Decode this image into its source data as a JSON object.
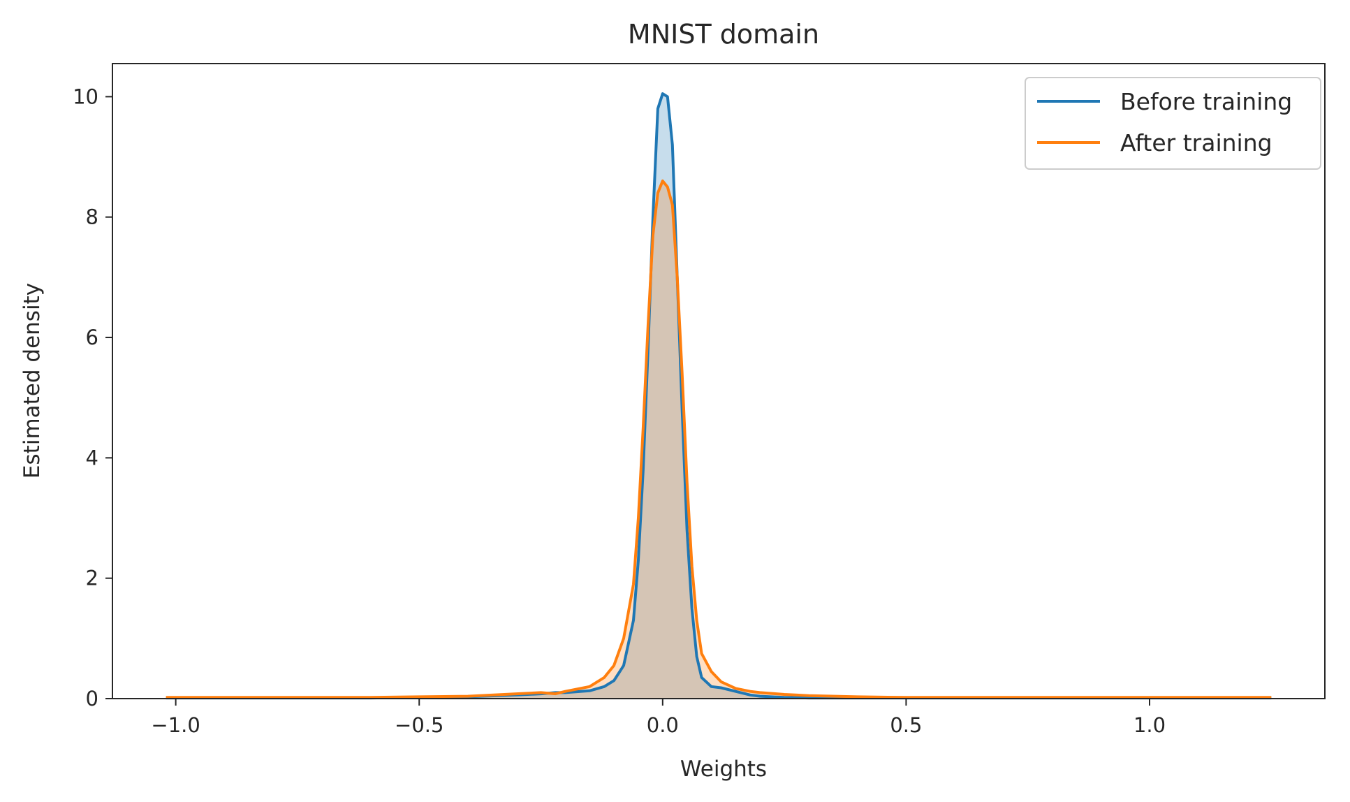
{
  "chart_data": {
    "type": "area",
    "title": "MNIST domain",
    "xlabel": "Weights",
    "ylabel": "Estimated density",
    "xlim": [
      -1.13,
      1.36
    ],
    "ylim": [
      0,
      10.55
    ],
    "xticks": [
      -1.0,
      -0.5,
      0.0,
      0.5,
      1.0
    ],
    "xtick_labels": [
      "−1.0",
      "−0.5",
      "0.0",
      "0.5",
      "1.0"
    ],
    "yticks": [
      0,
      2,
      4,
      6,
      8,
      10
    ],
    "ytick_labels": [
      "0",
      "2",
      "4",
      "6",
      "8",
      "10"
    ],
    "grid": false,
    "legend_position": "top-right",
    "series": [
      {
        "name": "Before training",
        "color": "#1f77b4",
        "fill": "#1f77b4",
        "x": [
          -1.02,
          -0.8,
          -0.6,
          -0.5,
          -0.4,
          -0.3,
          -0.25,
          -0.22,
          -0.2,
          -0.15,
          -0.12,
          -0.1,
          -0.08,
          -0.06,
          -0.05,
          -0.04,
          -0.03,
          -0.02,
          -0.01,
          0.0,
          0.01,
          0.02,
          0.03,
          0.04,
          0.05,
          0.06,
          0.07,
          0.08,
          0.1,
          0.12,
          0.15,
          0.18,
          0.2,
          0.25,
          0.3,
          0.4,
          0.5,
          0.7,
          1.0,
          1.25
        ],
        "values": [
          0.01,
          0.01,
          0.01,
          0.02,
          0.03,
          0.06,
          0.08,
          0.1,
          0.1,
          0.13,
          0.2,
          0.3,
          0.55,
          1.3,
          2.3,
          3.8,
          5.8,
          8.0,
          9.8,
          10.05,
          10.0,
          9.2,
          7.0,
          4.8,
          2.8,
          1.5,
          0.7,
          0.35,
          0.2,
          0.18,
          0.12,
          0.06,
          0.04,
          0.02,
          0.01,
          0.01,
          0.01,
          0.01,
          0.01,
          0.01
        ]
      },
      {
        "name": "After training",
        "color": "#ff7f0e",
        "fill": "#ff7f0e",
        "x": [
          -1.02,
          -0.8,
          -0.6,
          -0.5,
          -0.4,
          -0.3,
          -0.25,
          -0.22,
          -0.2,
          -0.15,
          -0.12,
          -0.1,
          -0.08,
          -0.06,
          -0.05,
          -0.04,
          -0.03,
          -0.02,
          -0.01,
          0.0,
          0.01,
          0.02,
          0.03,
          0.04,
          0.05,
          0.06,
          0.07,
          0.08,
          0.1,
          0.12,
          0.15,
          0.18,
          0.2,
          0.25,
          0.3,
          0.4,
          0.5,
          0.7,
          1.0,
          1.25
        ],
        "values": [
          0.02,
          0.02,
          0.02,
          0.03,
          0.04,
          0.08,
          0.1,
          0.08,
          0.12,
          0.2,
          0.35,
          0.55,
          1.0,
          1.9,
          3.0,
          4.5,
          6.2,
          7.7,
          8.4,
          8.6,
          8.5,
          8.2,
          7.0,
          5.4,
          3.6,
          2.2,
          1.3,
          0.75,
          0.45,
          0.28,
          0.17,
          0.12,
          0.1,
          0.07,
          0.05,
          0.03,
          0.02,
          0.02,
          0.02,
          0.02
        ]
      }
    ]
  }
}
